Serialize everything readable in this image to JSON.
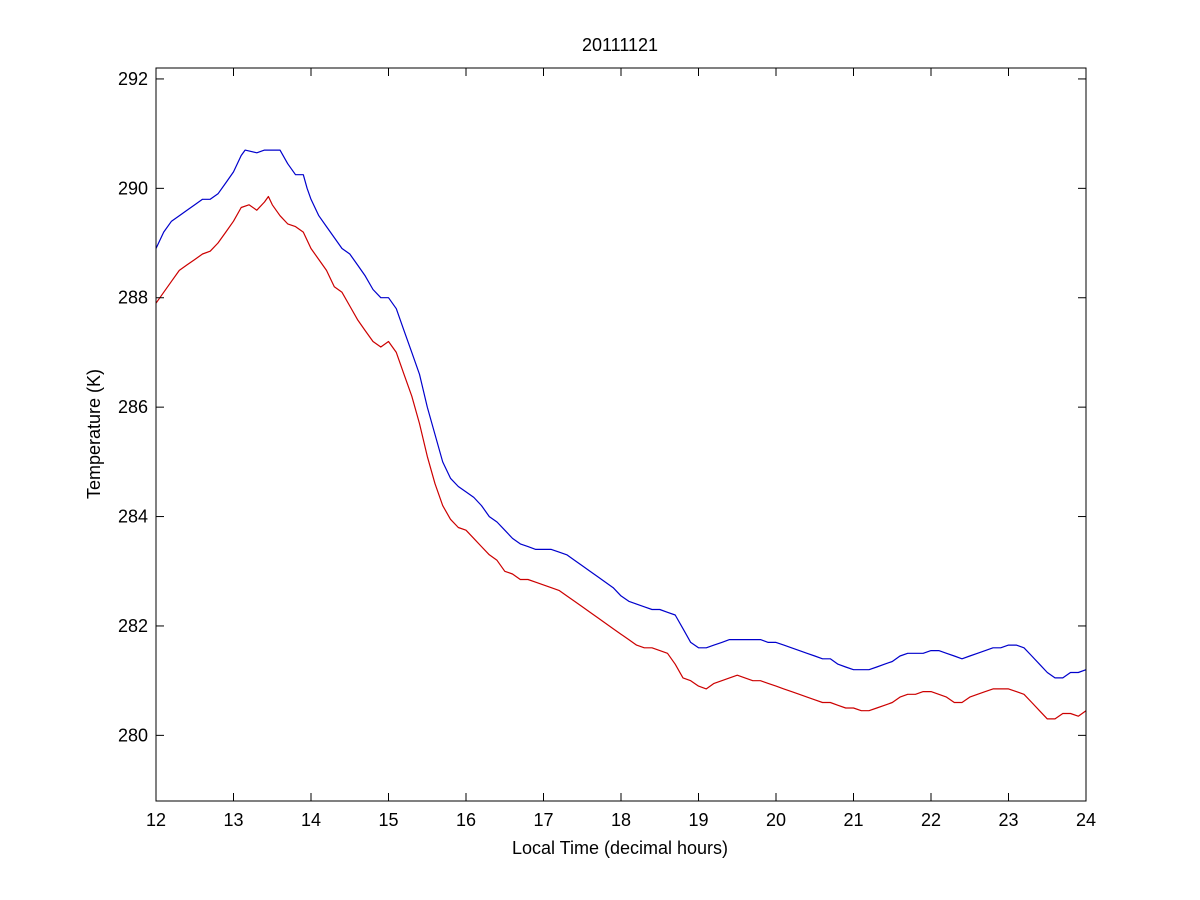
{
  "chart_data": {
    "type": "line",
    "title": "20111121",
    "xlabel": "Local Time (decimal hours)",
    "ylabel": "Temperature (K)",
    "xlim": [
      12,
      24
    ],
    "ylim": [
      278.8,
      292.2
    ],
    "xticks": [
      12,
      13,
      14,
      15,
      16,
      17,
      18,
      19,
      20,
      21,
      22,
      23,
      24
    ],
    "yticks": [
      280,
      282,
      284,
      286,
      288,
      290,
      292
    ],
    "grid": false,
    "legend": "none",
    "series": [
      {
        "color": "#0000cc",
        "points": [
          [
            12.0,
            288.9
          ],
          [
            12.1,
            289.2
          ],
          [
            12.2,
            289.4
          ],
          [
            12.3,
            289.5
          ],
          [
            12.4,
            289.6
          ],
          [
            12.5,
            289.7
          ],
          [
            12.6,
            289.8
          ],
          [
            12.7,
            289.8
          ],
          [
            12.8,
            289.9
          ],
          [
            12.9,
            290.1
          ],
          [
            13.0,
            290.3
          ],
          [
            13.1,
            290.6
          ],
          [
            13.15,
            290.7
          ],
          [
            13.3,
            290.65
          ],
          [
            13.4,
            290.7
          ],
          [
            13.6,
            290.7
          ],
          [
            13.7,
            290.45
          ],
          [
            13.8,
            290.25
          ],
          [
            13.9,
            290.25
          ],
          [
            13.95,
            290.0
          ],
          [
            14.0,
            289.8
          ],
          [
            14.1,
            289.5
          ],
          [
            14.2,
            289.3
          ],
          [
            14.3,
            289.1
          ],
          [
            14.4,
            288.9
          ],
          [
            14.5,
            288.8
          ],
          [
            14.6,
            288.6
          ],
          [
            14.7,
            288.4
          ],
          [
            14.8,
            288.15
          ],
          [
            14.9,
            288.0
          ],
          [
            15.0,
            288.0
          ],
          [
            15.1,
            287.8
          ],
          [
            15.2,
            287.4
          ],
          [
            15.3,
            287.0
          ],
          [
            15.4,
            286.6
          ],
          [
            15.5,
            286.0
          ],
          [
            15.6,
            285.5
          ],
          [
            15.7,
            285.0
          ],
          [
            15.8,
            284.7
          ],
          [
            15.9,
            284.55
          ],
          [
            16.0,
            284.45
          ],
          [
            16.1,
            284.35
          ],
          [
            16.2,
            284.2
          ],
          [
            16.3,
            284.0
          ],
          [
            16.4,
            283.9
          ],
          [
            16.5,
            283.75
          ],
          [
            16.6,
            283.6
          ],
          [
            16.7,
            283.5
          ],
          [
            16.8,
            283.45
          ],
          [
            16.9,
            283.4
          ],
          [
            17.0,
            283.4
          ],
          [
            17.1,
            283.4
          ],
          [
            17.2,
            283.35
          ],
          [
            17.3,
            283.3
          ],
          [
            17.4,
            283.2
          ],
          [
            17.5,
            283.1
          ],
          [
            17.6,
            283.0
          ],
          [
            17.7,
            282.9
          ],
          [
            17.8,
            282.8
          ],
          [
            17.9,
            282.7
          ],
          [
            18.0,
            282.55
          ],
          [
            18.1,
            282.45
          ],
          [
            18.2,
            282.4
          ],
          [
            18.3,
            282.35
          ],
          [
            18.4,
            282.3
          ],
          [
            18.5,
            282.3
          ],
          [
            18.6,
            282.25
          ],
          [
            18.7,
            282.2
          ],
          [
            18.8,
            281.95
          ],
          [
            18.9,
            281.7
          ],
          [
            19.0,
            281.6
          ],
          [
            19.1,
            281.6
          ],
          [
            19.2,
            281.65
          ],
          [
            19.3,
            281.7
          ],
          [
            19.4,
            281.75
          ],
          [
            19.5,
            281.75
          ],
          [
            19.6,
            281.75
          ],
          [
            19.7,
            281.75
          ],
          [
            19.8,
            281.75
          ],
          [
            19.9,
            281.7
          ],
          [
            20.0,
            281.7
          ],
          [
            20.1,
            281.65
          ],
          [
            20.2,
            281.6
          ],
          [
            20.3,
            281.55
          ],
          [
            20.4,
            281.5
          ],
          [
            20.5,
            281.45
          ],
          [
            20.6,
            281.4
          ],
          [
            20.7,
            281.4
          ],
          [
            20.8,
            281.3
          ],
          [
            20.9,
            281.25
          ],
          [
            21.0,
            281.2
          ],
          [
            21.1,
            281.2
          ],
          [
            21.2,
            281.2
          ],
          [
            21.3,
            281.25
          ],
          [
            21.4,
            281.3
          ],
          [
            21.5,
            281.35
          ],
          [
            21.6,
            281.45
          ],
          [
            21.7,
            281.5
          ],
          [
            21.8,
            281.5
          ],
          [
            21.9,
            281.5
          ],
          [
            22.0,
            281.55
          ],
          [
            22.1,
            281.55
          ],
          [
            22.2,
            281.5
          ],
          [
            22.3,
            281.45
          ],
          [
            22.4,
            281.4
          ],
          [
            22.5,
            281.45
          ],
          [
            22.6,
            281.5
          ],
          [
            22.7,
            281.55
          ],
          [
            22.8,
            281.6
          ],
          [
            22.9,
            281.6
          ],
          [
            23.0,
            281.65
          ],
          [
            23.1,
            281.65
          ],
          [
            23.2,
            281.6
          ],
          [
            23.3,
            281.45
          ],
          [
            23.4,
            281.3
          ],
          [
            23.5,
            281.15
          ],
          [
            23.6,
            281.05
          ],
          [
            23.7,
            281.05
          ],
          [
            23.8,
            281.15
          ],
          [
            23.9,
            281.15
          ],
          [
            24.0,
            281.2
          ]
        ]
      },
      {
        "color": "#cc0000",
        "points": [
          [
            12.0,
            287.9
          ],
          [
            12.1,
            288.1
          ],
          [
            12.2,
            288.3
          ],
          [
            12.3,
            288.5
          ],
          [
            12.4,
            288.6
          ],
          [
            12.5,
            288.7
          ],
          [
            12.6,
            288.8
          ],
          [
            12.7,
            288.85
          ],
          [
            12.8,
            289.0
          ],
          [
            12.9,
            289.2
          ],
          [
            13.0,
            289.4
          ],
          [
            13.1,
            289.65
          ],
          [
            13.2,
            289.7
          ],
          [
            13.3,
            289.6
          ],
          [
            13.4,
            289.75
          ],
          [
            13.45,
            289.85
          ],
          [
            13.5,
            289.7
          ],
          [
            13.6,
            289.5
          ],
          [
            13.7,
            289.35
          ],
          [
            13.8,
            289.3
          ],
          [
            13.9,
            289.2
          ],
          [
            14.0,
            288.9
          ],
          [
            14.1,
            288.7
          ],
          [
            14.2,
            288.5
          ],
          [
            14.3,
            288.2
          ],
          [
            14.4,
            288.1
          ],
          [
            14.5,
            287.85
          ],
          [
            14.6,
            287.6
          ],
          [
            14.7,
            287.4
          ],
          [
            14.8,
            287.2
          ],
          [
            14.9,
            287.1
          ],
          [
            15.0,
            287.2
          ],
          [
            15.1,
            287.0
          ],
          [
            15.2,
            286.6
          ],
          [
            15.3,
            286.2
          ],
          [
            15.4,
            285.7
          ],
          [
            15.5,
            285.1
          ],
          [
            15.6,
            284.6
          ],
          [
            15.7,
            284.2
          ],
          [
            15.8,
            283.95
          ],
          [
            15.9,
            283.8
          ],
          [
            16.0,
            283.75
          ],
          [
            16.1,
            283.6
          ],
          [
            16.2,
            283.45
          ],
          [
            16.3,
            283.3
          ],
          [
            16.4,
            283.2
          ],
          [
            16.5,
            283.0
          ],
          [
            16.6,
            282.95
          ],
          [
            16.7,
            282.85
          ],
          [
            16.8,
            282.85
          ],
          [
            16.9,
            282.8
          ],
          [
            17.0,
            282.75
          ],
          [
            17.1,
            282.7
          ],
          [
            17.2,
            282.65
          ],
          [
            17.3,
            282.55
          ],
          [
            17.4,
            282.45
          ],
          [
            17.5,
            282.35
          ],
          [
            17.6,
            282.25
          ],
          [
            17.7,
            282.15
          ],
          [
            17.8,
            282.05
          ],
          [
            17.9,
            281.95
          ],
          [
            18.0,
            281.85
          ],
          [
            18.1,
            281.75
          ],
          [
            18.2,
            281.65
          ],
          [
            18.3,
            281.6
          ],
          [
            18.4,
            281.6
          ],
          [
            18.5,
            281.55
          ],
          [
            18.6,
            281.5
          ],
          [
            18.7,
            281.3
          ],
          [
            18.8,
            281.05
          ],
          [
            18.9,
            281.0
          ],
          [
            19.0,
            280.9
          ],
          [
            19.1,
            280.85
          ],
          [
            19.2,
            280.95
          ],
          [
            19.3,
            281.0
          ],
          [
            19.4,
            281.05
          ],
          [
            19.5,
            281.1
          ],
          [
            19.6,
            281.05
          ],
          [
            19.7,
            281.0
          ],
          [
            19.8,
            281.0
          ],
          [
            19.9,
            280.95
          ],
          [
            20.0,
            280.9
          ],
          [
            20.1,
            280.85
          ],
          [
            20.2,
            280.8
          ],
          [
            20.3,
            280.75
          ],
          [
            20.4,
            280.7
          ],
          [
            20.5,
            280.65
          ],
          [
            20.6,
            280.6
          ],
          [
            20.7,
            280.6
          ],
          [
            20.8,
            280.55
          ],
          [
            20.9,
            280.5
          ],
          [
            21.0,
            280.5
          ],
          [
            21.1,
            280.45
          ],
          [
            21.2,
            280.45
          ],
          [
            21.3,
            280.5
          ],
          [
            21.4,
            280.55
          ],
          [
            21.5,
            280.6
          ],
          [
            21.6,
            280.7
          ],
          [
            21.7,
            280.75
          ],
          [
            21.8,
            280.75
          ],
          [
            21.9,
            280.8
          ],
          [
            22.0,
            280.8
          ],
          [
            22.1,
            280.75
          ],
          [
            22.2,
            280.7
          ],
          [
            22.3,
            280.6
          ],
          [
            22.4,
            280.6
          ],
          [
            22.5,
            280.7
          ],
          [
            22.6,
            280.75
          ],
          [
            22.7,
            280.8
          ],
          [
            22.8,
            280.85
          ],
          [
            22.9,
            280.85
          ],
          [
            23.0,
            280.85
          ],
          [
            23.1,
            280.8
          ],
          [
            23.2,
            280.75
          ],
          [
            23.3,
            280.6
          ],
          [
            23.4,
            280.45
          ],
          [
            23.5,
            280.3
          ],
          [
            23.6,
            280.3
          ],
          [
            23.7,
            280.4
          ],
          [
            23.8,
            280.4
          ],
          [
            23.9,
            280.35
          ],
          [
            24.0,
            280.45
          ]
        ]
      }
    ]
  }
}
